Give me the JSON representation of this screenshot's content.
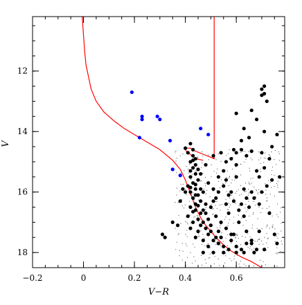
{
  "chart_data": {
    "type": "scatter",
    "title": "",
    "xlabel": "V−R",
    "ylabel": "V",
    "xlim": [
      -0.2,
      0.79
    ],
    "ylim": [
      18.5,
      10.2
    ],
    "y_inverted": true,
    "x_ticks": [
      -0.2,
      0,
      0.2,
      0.4,
      0.6
    ],
    "x_tick_labels": [
      "−0.2",
      "0",
      "0.2",
      "0.4",
      "0.6"
    ],
    "y_ticks": [
      12,
      14,
      16,
      18
    ],
    "y_tick_labels": [
      "12",
      "14",
      "16",
      "18"
    ],
    "grid": false,
    "legend": "none",
    "colors": {
      "member_stars": "#000000",
      "blue_stragglers": "#0000ff",
      "isochrone": "#ff0000"
    },
    "isochrone": {
      "x": [
        -0.005,
        0,
        0.005,
        0.01,
        0.02,
        0.03,
        0.05,
        0.08,
        0.12,
        0.16,
        0.2,
        0.25,
        0.3,
        0.35,
        0.38,
        0.4,
        0.42,
        0.44,
        0.46,
        0.48,
        0.5,
        0.52,
        0.55,
        0.58,
        0.62,
        0.66,
        0.7
      ],
      "y": [
        10.2,
        10.8,
        11.4,
        11.8,
        12.2,
        12.6,
        13.0,
        13.35,
        13.65,
        13.9,
        14.1,
        14.35,
        14.6,
        14.95,
        15.25,
        15.6,
        16.05,
        16.5,
        16.85,
        17.1,
        17.3,
        17.5,
        17.75,
        17.95,
        18.15,
        18.3,
        18.5
      ]
    },
    "rgb_branch": {
      "x": [
        0.4,
        0.42,
        0.44,
        0.47,
        0.5,
        0.513,
        0.513
      ],
      "y": [
        14.55,
        14.55,
        14.65,
        14.75,
        14.85,
        14.9,
        10.2
      ]
    },
    "hb_segment": {
      "x": [
        0.4,
        0.44,
        0.47
      ],
      "y": [
        14.62,
        14.9,
        14.95
      ]
    },
    "series": [
      {
        "values": [
          [
            0.4,
            14.55
          ],
          [
            0.41,
            14.7
          ],
          [
            0.42,
            14.4
          ],
          [
            0.43,
            14.6
          ],
          [
            0.44,
            14.9
          ],
          [
            0.42,
            15.0
          ],
          [
            0.43,
            15.2
          ],
          [
            0.44,
            15.4
          ],
          [
            0.42,
            15.5
          ],
          [
            0.43,
            15.7
          ],
          [
            0.44,
            15.9
          ],
          [
            0.42,
            16.0
          ],
          [
            0.43,
            16.2
          ],
          [
            0.44,
            16.4
          ],
          [
            0.42,
            15.3
          ],
          [
            0.44,
            15.1
          ],
          [
            0.43,
            14.8
          ],
          [
            0.45,
            15.6
          ],
          [
            0.41,
            15.8
          ],
          [
            0.45,
            16.1
          ],
          [
            0.42,
            16.5
          ],
          [
            0.44,
            16.6
          ],
          [
            0.46,
            16.7
          ],
          [
            0.45,
            16.9
          ],
          [
            0.47,
            17.0
          ],
          [
            0.48,
            17.2
          ],
          [
            0.46,
            17.1
          ],
          [
            0.5,
            17.3
          ],
          [
            0.49,
            17.4
          ],
          [
            0.52,
            17.5
          ],
          [
            0.51,
            17.6
          ],
          [
            0.53,
            17.7
          ],
          [
            0.55,
            17.8
          ],
          [
            0.54,
            17.5
          ],
          [
            0.57,
            17.9
          ],
          [
            0.58,
            17.6
          ],
          [
            0.6,
            17.8
          ],
          [
            0.62,
            17.9
          ],
          [
            0.56,
            17.2
          ],
          [
            0.59,
            17.4
          ],
          [
            0.61,
            17.0
          ],
          [
            0.64,
            17.3
          ],
          [
            0.66,
            17.6
          ],
          [
            0.68,
            17.9
          ],
          [
            0.63,
            16.8
          ],
          [
            0.65,
            16.5
          ],
          [
            0.67,
            16.2
          ],
          [
            0.7,
            16.0
          ],
          [
            0.72,
            15.8
          ],
          [
            0.69,
            15.5
          ],
          [
            0.71,
            15.2
          ],
          [
            0.73,
            14.9
          ],
          [
            0.74,
            14.5
          ],
          [
            0.71,
            14.0
          ],
          [
            0.68,
            13.6
          ],
          [
            0.66,
            13.3
          ],
          [
            0.72,
            13.0
          ],
          [
            0.7,
            12.8
          ],
          [
            0.7,
            12.6
          ],
          [
            0.71,
            12.5
          ],
          [
            0.71,
            12.75
          ],
          [
            0.6,
            13.4
          ],
          [
            0.63,
            13.9
          ],
          [
            0.65,
            14.2
          ],
          [
            0.6,
            14.7
          ],
          [
            0.58,
            14.9
          ],
          [
            0.56,
            15.0
          ],
          [
            0.55,
            15.3
          ],
          [
            0.53,
            15.5
          ],
          [
            0.55,
            15.8
          ],
          [
            0.57,
            16.1
          ],
          [
            0.59,
            16.3
          ],
          [
            0.61,
            16.6
          ],
          [
            0.49,
            15.7
          ],
          [
            0.51,
            15.9
          ],
          [
            0.52,
            16.2
          ],
          [
            0.5,
            16.5
          ],
          [
            0.48,
            16.4
          ],
          [
            0.47,
            16.0
          ],
          [
            0.46,
            15.4
          ],
          [
            0.48,
            15.1
          ],
          [
            0.51,
            14.8
          ],
          [
            0.54,
            14.7
          ],
          [
            0.59,
            14.6
          ],
          [
            0.62,
            14.6
          ],
          [
            0.35,
            17.0
          ],
          [
            0.37,
            17.1
          ],
          [
            0.31,
            17.4
          ],
          [
            0.32,
            17.5
          ],
          [
            0.4,
            16.0
          ],
          [
            0.39,
            15.9
          ],
          [
            0.38,
            16.3
          ],
          [
            0.41,
            16.8
          ],
          [
            0.43,
            17.0
          ],
          [
            0.45,
            17.3
          ],
          [
            0.47,
            17.6
          ],
          [
            0.49,
            17.8
          ],
          [
            0.51,
            18.0
          ],
          [
            0.47,
            18.0
          ],
          [
            0.44,
            17.5
          ],
          [
            0.42,
            17.2
          ],
          [
            0.55,
            18.0
          ],
          [
            0.6,
            18.0
          ],
          [
            0.63,
            18.0
          ],
          [
            0.66,
            17.7
          ],
          [
            0.69,
            17.3
          ],
          [
            0.73,
            16.7
          ],
          [
            0.74,
            15.6
          ],
          [
            0.76,
            14.1
          ],
          [
            0.77,
            15.5
          ],
          [
            0.75,
            17.4
          ],
          [
            0.76,
            17.7
          ],
          [
            0.56,
            15.6
          ],
          [
            0.58,
            16.0
          ],
          [
            0.52,
            16.8
          ],
          [
            0.54,
            17.0
          ],
          [
            0.57,
            16.7
          ],
          [
            0.62,
            16.4
          ],
          [
            0.66,
            16.0
          ],
          [
            0.68,
            15.3
          ],
          [
            0.63,
            15.9
          ],
          [
            0.6,
            15.1
          ],
          [
            0.46,
            16.3
          ],
          [
            0.44,
            16.1
          ],
          [
            0.42,
            15.85
          ],
          [
            0.43,
            16.65
          ],
          [
            0.45,
            16.45
          ],
          [
            0.47,
            16.6
          ],
          [
            0.49,
            16.9
          ],
          [
            0.53,
            17.3
          ],
          [
            0.58,
            17.4
          ],
          [
            0.64,
            17.7
          ],
          [
            0.67,
            18.0
          ],
          [
            0.71,
            17.9
          ],
          [
            0.5,
            17.1
          ],
          [
            0.48,
            16.7
          ],
          [
            0.46,
            15.9
          ],
          [
            0.44,
            15.75
          ],
          [
            0.45,
            15.25
          ],
          [
            0.43,
            14.95
          ],
          [
            0.62,
            14.3
          ],
          [
            0.64,
            14.8
          ],
          [
            0.66,
            14.65
          ],
          [
            0.7,
            14.7
          ],
          [
            0.69,
            16.4
          ],
          [
            0.64,
            16.2
          ],
          [
            0.6,
            15.5
          ],
          [
            0.56,
            16.4
          ],
          [
            0.53,
            16.0
          ],
          [
            0.51,
            16.3
          ]
        ]
      },
      {
        "values": [
          [
            0.19,
            12.7
          ],
          [
            0.23,
            13.5
          ],
          [
            0.23,
            13.6
          ],
          [
            0.29,
            13.5
          ],
          [
            0.3,
            13.6
          ],
          [
            0.46,
            13.9
          ],
          [
            0.49,
            14.1
          ],
          [
            0.22,
            14.2
          ],
          [
            0.34,
            14.3
          ],
          [
            0.35,
            15.25
          ],
          [
            0.38,
            15.45
          ]
        ]
      }
    ]
  }
}
